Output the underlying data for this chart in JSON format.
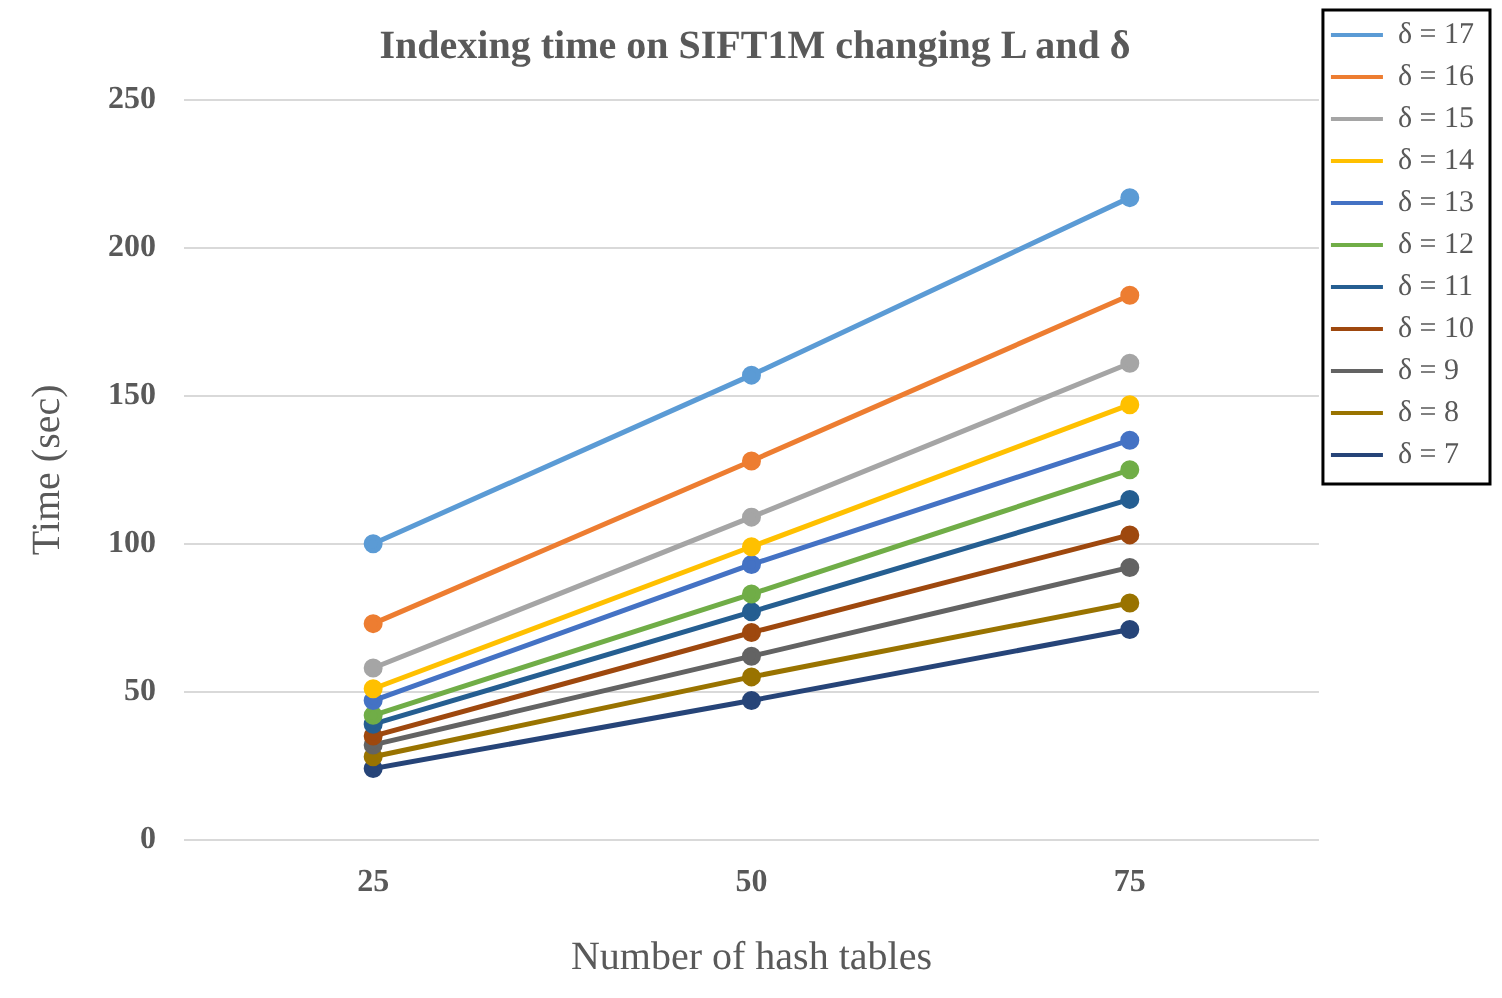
{
  "chart_data": {
    "type": "line",
    "title": "Indexing time on SIFT1M changing L and δ",
    "xlabel": "Number of hash tables",
    "ylabel": "Time (sec)",
    "categories": [
      "25",
      "50",
      "75"
    ],
    "ylim": [
      0,
      250
    ],
    "yticks": [
      0,
      50,
      100,
      150,
      200,
      250
    ],
    "grid": "y",
    "legend": "right",
    "marker": "circle",
    "line_style": "solid",
    "series": [
      {
        "name": "δ = 17",
        "color": "#5b9bd5",
        "values": [
          100,
          157,
          217
        ]
      },
      {
        "name": "δ = 16",
        "color": "#ed7d31",
        "values": [
          73,
          128,
          184
        ]
      },
      {
        "name": "δ = 15",
        "color": "#a5a5a5",
        "values": [
          58,
          109,
          161
        ]
      },
      {
        "name": "δ = 14",
        "color": "#ffc000",
        "values": [
          51,
          99,
          147
        ]
      },
      {
        "name": "δ = 13",
        "color": "#4472c4",
        "values": [
          47,
          93,
          135
        ]
      },
      {
        "name": "δ = 12",
        "color": "#70ad47",
        "values": [
          42,
          83,
          125
        ]
      },
      {
        "name": "δ = 11",
        "color": "#255e91",
        "values": [
          39,
          77,
          115
        ]
      },
      {
        "name": "δ = 10",
        "color": "#9e480e",
        "values": [
          35,
          70,
          103
        ]
      },
      {
        "name": "δ = 9",
        "color": "#636363",
        "values": [
          32,
          62,
          92
        ]
      },
      {
        "name": "δ = 8",
        "color": "#997300",
        "values": [
          28,
          55,
          80
        ]
      },
      {
        "name": "δ = 7",
        "color": "#264478",
        "values": [
          24,
          47,
          71
        ]
      }
    ]
  }
}
